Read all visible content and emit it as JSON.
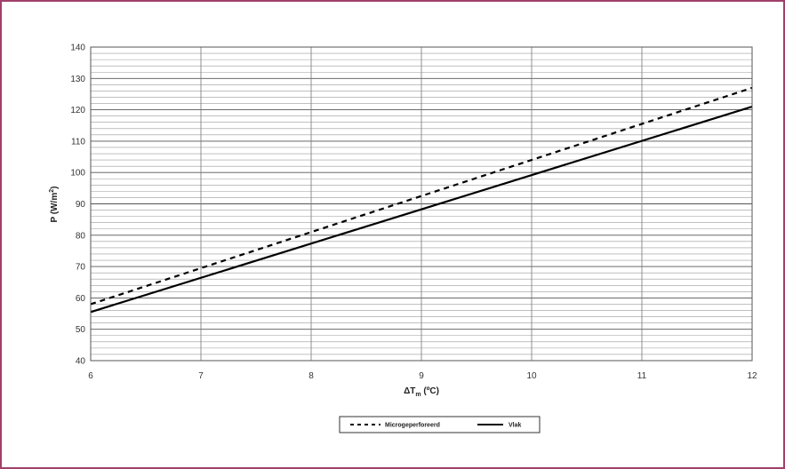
{
  "chart_data": {
    "type": "line",
    "xlabel_main": "ΔT",
    "xlabel_sub": "m",
    "xlabel_unit": " (ºC)",
    "ylabel_main": "P (W/m",
    "ylabel_sup": "2",
    "ylabel_end": ")",
    "xlim": [
      6,
      12
    ],
    "ylim": [
      40,
      140
    ],
    "xticks": [
      6,
      7,
      8,
      9,
      10,
      11,
      12
    ],
    "yticks": [
      40,
      50,
      60,
      70,
      80,
      90,
      100,
      110,
      120,
      130,
      140
    ],
    "minor_y_step": 2,
    "grid": true,
    "legend_position": "bottom",
    "series": [
      {
        "name": "Microgeperforeerd",
        "style": "dashed",
        "color": "#000000",
        "x": [
          6,
          12
        ],
        "y": [
          58,
          127
        ]
      },
      {
        "name": "Vlak",
        "style": "solid",
        "color": "#000000",
        "x": [
          6,
          12
        ],
        "y": [
          55.5,
          121
        ]
      }
    ]
  }
}
